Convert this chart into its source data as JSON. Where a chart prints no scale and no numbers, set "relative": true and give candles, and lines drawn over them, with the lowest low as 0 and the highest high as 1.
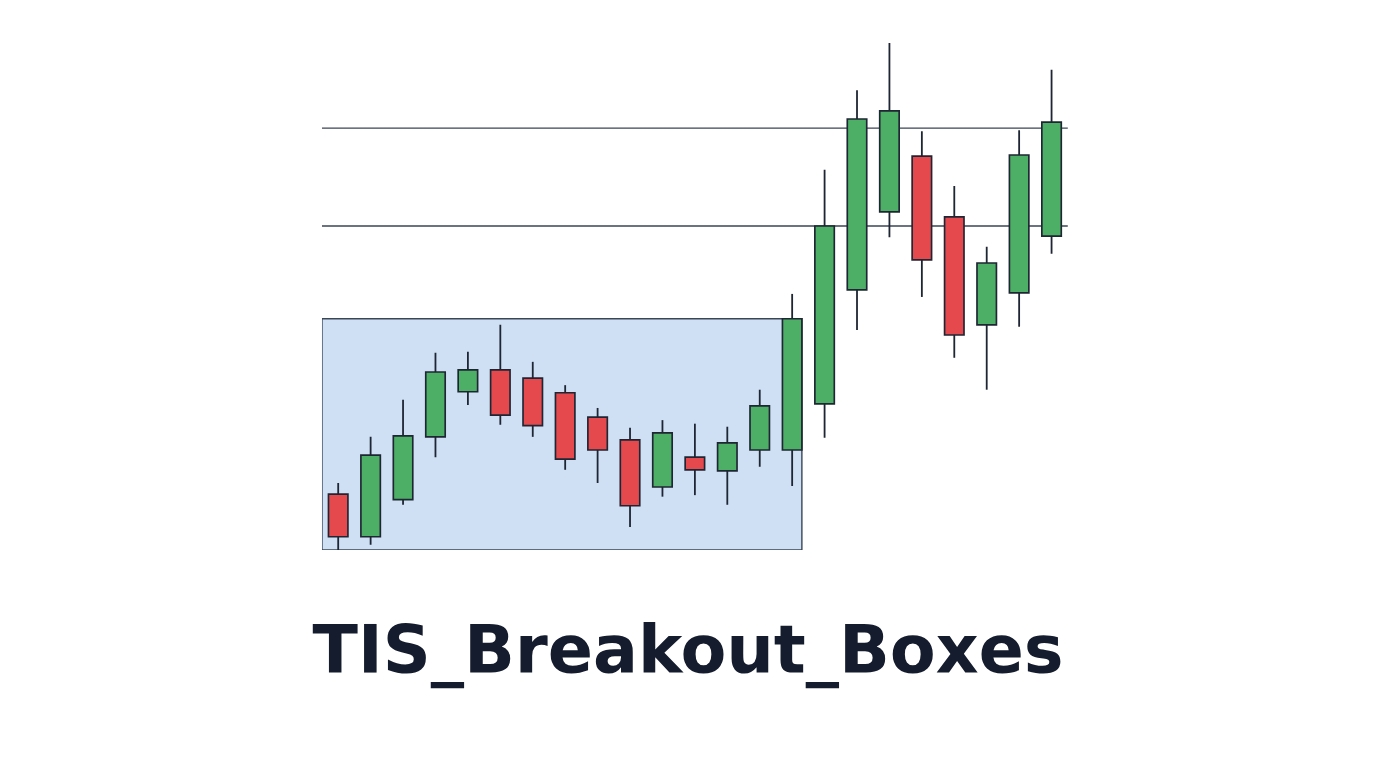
{
  "chart_data": {
    "type": "candlestick",
    "title": "TIS_Breakout_Boxes",
    "relative": true,
    "tick_labels": false,
    "categories": [
      null,
      null,
      null,
      null,
      null,
      null,
      null,
      null,
      null,
      null,
      null,
      null,
      null,
      null,
      null,
      null,
      null,
      null,
      null,
      null,
      null,
      null,
      null
    ],
    "ohlc": [
      [
        0.11,
        0.132,
        0,
        0.026
      ],
      [
        0.026,
        0.223,
        0.01,
        0.187
      ],
      [
        0.099,
        0.296,
        0.089,
        0.225
      ],
      [
        0.223,
        0.389,
        0.183,
        0.351
      ],
      [
        0.312,
        0.391,
        0.286,
        0.355
      ],
      [
        0.355,
        0.444,
        0.247,
        0.266
      ],
      [
        0.339,
        0.371,
        0.223,
        0.245
      ],
      [
        0.31,
        0.325,
        0.158,
        0.179
      ],
      [
        0.262,
        0.28,
        0.132,
        0.197
      ],
      [
        0.217,
        0.241,
        0.045,
        0.087
      ],
      [
        0.124,
        0.256,
        0.105,
        0.231
      ],
      [
        0.183,
        0.249,
        0.108,
        0.158
      ],
      [
        0.156,
        0.243,
        0.089,
        0.211
      ],
      [
        0.197,
        0.316,
        0.164,
        0.284
      ],
      [
        0.197,
        0.505,
        0.126,
        0.456
      ],
      [
        0.288,
        0.75,
        0.221,
        0.639
      ],
      [
        0.513,
        0.907,
        0.434,
        0.85
      ],
      [
        0.667,
        1,
        0.617,
        0.866
      ],
      [
        0.777,
        0.826,
        0.499,
        0.572
      ],
      [
        0.657,
        0.718,
        0.379,
        0.424
      ],
      [
        0.444,
        0.598,
        0.316,
        0.566
      ],
      [
        0.507,
        0.828,
        0.44,
        0.779
      ],
      [
        0.619,
        0.947,
        0.584,
        0.844
      ]
    ],
    "colors": [
      "#e5484d",
      "#4caf65",
      "#4caf65",
      "#4caf65",
      "#4caf65",
      "#e5484d",
      "#e5484d",
      "#e5484d",
      "#e5484d",
      "#e5484d",
      "#4caf65",
      "#e5484d",
      "#4caf65",
      "#4caf65",
      "#4caf65",
      "#4caf65",
      "#4caf65",
      "#4caf65",
      "#e5484d",
      "#e5484d",
      "#4caf65",
      "#4caf65",
      "#4caf65"
    ],
    "ref_lines": [
      {
        "axis": "y",
        "value": 0.832,
        "color": "#3a4556"
      },
      {
        "axis": "y",
        "value": 0.639,
        "color": "#3a4556"
      }
    ],
    "bands": [
      {
        "axis": "y",
        "from": 0,
        "to": 0.456,
        "color": "#cfe0f5"
      }
    ]
  }
}
